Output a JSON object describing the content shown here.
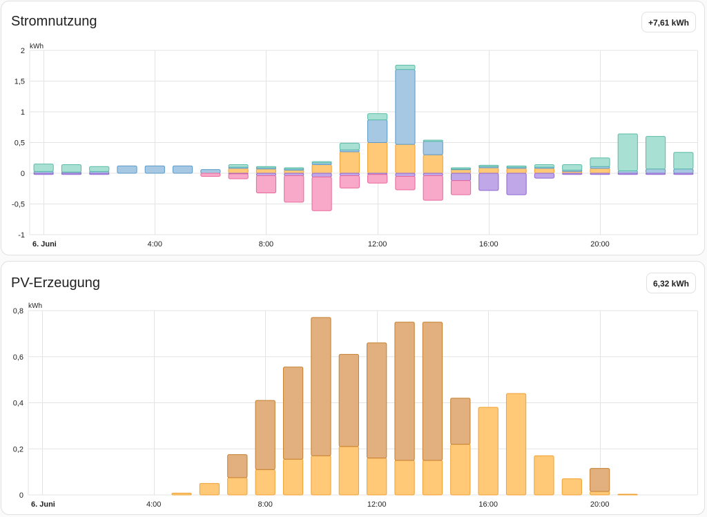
{
  "colors": {
    "grid": "#e3e3e3",
    "solar": "#ffc978",
    "solar_edge": "#f0a030",
    "grid_import": "#a6c8e2",
    "grid_import_edge": "#5a9ac8",
    "grid_export": "#f8a8c8",
    "grid_export_edge": "#e8679a",
    "battery_charge": "#c0a8e8",
    "battery_charge_edge": "#8e65d0",
    "battery_discharge": "#a8e0d4",
    "battery_discharge_edge": "#5abba6",
    "self_consumed": "#e2b07e",
    "self_consumed_edge": "#c47e2c"
  },
  "usage_card": {
    "title": "Stromnutzung",
    "total": "+7,61 kWh"
  },
  "production_card": {
    "title": "PV-Erzeugung",
    "total": "6,32 kWh"
  },
  "chart_data": [
    {
      "type": "bar",
      "stacked": true,
      "ylabel": "kWh",
      "ylim": [
        -1,
        2
      ],
      "yticks": [
        -1,
        -0.5,
        0,
        0.5,
        1,
        1.5,
        2
      ],
      "ytick_labels": [
        "-1",
        "-0,5",
        "0",
        "0,5",
        "1",
        "1,5",
        "2"
      ],
      "x_ticks": [
        0,
        4,
        8,
        12,
        16,
        20
      ],
      "x_tick_labels": [
        "6. Juni",
        "4:00",
        "8:00",
        "12:00",
        "16:00",
        "20:00"
      ],
      "x_range_hours": [
        0,
        24
      ],
      "grid": true,
      "hours": [
        0,
        1,
        2,
        3,
        4,
        5,
        6,
        7,
        8,
        9,
        10,
        11,
        12,
        13,
        14,
        15,
        16,
        17,
        18,
        19,
        20,
        21,
        22,
        23
      ],
      "series": [
        {
          "key": "solar",
          "values": [
            0,
            0,
            0,
            0,
            0,
            0,
            0,
            0.08,
            0.07,
            0.05,
            0.14,
            0.35,
            0.5,
            0.47,
            0.3,
            0.06,
            0.09,
            0.08,
            0.08,
            0.03,
            0.08,
            0,
            0,
            0
          ]
        },
        {
          "key": "grid_import",
          "values": [
            0.03,
            0.02,
            0.03,
            0.12,
            0.12,
            0.12,
            0.06,
            0.02,
            0.02,
            0.02,
            0.03,
            0.03,
            0.37,
            1.22,
            0.22,
            0.01,
            0.02,
            0.02,
            0.02,
            0.02,
            0.03,
            0.04,
            0.07,
            0.07
          ]
        },
        {
          "key": "battery_discharge",
          "values": [
            0.12,
            0.12,
            0.08,
            0,
            0,
            0,
            0,
            0.04,
            0.02,
            0.02,
            0.02,
            0.11,
            0.1,
            0.07,
            0.02,
            0.02,
            0.02,
            0.02,
            0.04,
            0.09,
            0.14,
            0.6,
            0.53,
            0.27
          ]
        },
        {
          "key": "battery_charge",
          "values": [
            -0.02,
            -0.02,
            -0.02,
            0,
            0,
            0,
            0,
            -0.01,
            -0.04,
            -0.04,
            -0.06,
            -0.04,
            -0.02,
            -0.05,
            -0.04,
            -0.12,
            -0.28,
            -0.35,
            -0.08,
            -0.02,
            -0.02,
            -0.02,
            -0.02,
            -0.02
          ]
        },
        {
          "key": "grid_export",
          "values": [
            0,
            0,
            0,
            0,
            0,
            0,
            -0.05,
            -0.08,
            -0.28,
            -0.43,
            -0.55,
            -0.2,
            -0.14,
            -0.22,
            -0.4,
            -0.23,
            0,
            0,
            0,
            0,
            0,
            0,
            0,
            0
          ]
        }
      ]
    },
    {
      "type": "bar",
      "stacked": true,
      "ylabel": "kWh",
      "ylim": [
        0,
        0.8
      ],
      "yticks": [
        0,
        0.2,
        0.4,
        0.6,
        0.8
      ],
      "ytick_labels": [
        "0",
        "0,2",
        "0,4",
        "0,6",
        "0,8"
      ],
      "x_ticks": [
        0,
        4,
        8,
        12,
        16,
        20
      ],
      "x_tick_labels": [
        "6. Juni",
        "4:00",
        "8:00",
        "12:00",
        "16:00",
        "20:00"
      ],
      "x_range_hours": [
        0,
        24
      ],
      "grid": true,
      "hours": [
        0,
        1,
        2,
        3,
        4,
        5,
        6,
        7,
        8,
        9,
        10,
        11,
        12,
        13,
        14,
        15,
        16,
        17,
        18,
        19,
        20,
        21,
        22,
        23
      ],
      "series": [
        {
          "key": "solar",
          "values": [
            0,
            0,
            0,
            0,
            0,
            0.008,
            0.05,
            0.075,
            0.11,
            0.155,
            0.17,
            0.21,
            0.16,
            0.15,
            0.15,
            0.22,
            0.38,
            0.44,
            0.17,
            0.07,
            0.015,
            0.003,
            0,
            0
          ]
        },
        {
          "key": "self_consumed",
          "values": [
            0,
            0,
            0,
            0,
            0,
            0,
            0,
            0.1,
            0.3,
            0.4,
            0.6,
            0.4,
            0.5,
            0.6,
            0.6,
            0.2,
            0,
            0,
            0,
            0,
            0.1,
            0,
            0,
            0
          ]
        }
      ]
    }
  ]
}
